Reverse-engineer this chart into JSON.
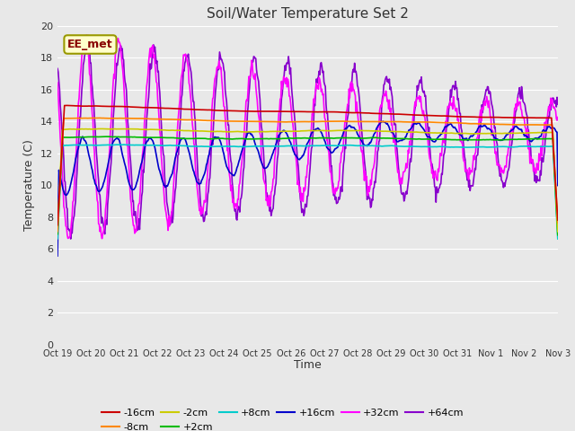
{
  "title": "Soil/Water Temperature Set 2",
  "xlabel": "Time",
  "ylabel": "Temperature (C)",
  "annotation": "EE_met",
  "ylim": [
    0,
    20
  ],
  "x_tick_labels": [
    "Oct 19",
    "Oct 20",
    "Oct 21",
    "Oct 22",
    "Oct 23",
    "Oct 24",
    "Oct 25",
    "Oct 26",
    "Oct 27",
    "Oct 28",
    "Oct 29",
    "Oct 30",
    "Oct 31",
    "Nov 1",
    "Nov 2",
    "Nov 3"
  ],
  "series": {
    "-16cm": {
      "color": "#cc0000",
      "lw": 1.2
    },
    "-8cm": {
      "color": "#ff8800",
      "lw": 1.2
    },
    "-2cm": {
      "color": "#cccc00",
      "lw": 1.2
    },
    "+2cm": {
      "color": "#00bb00",
      "lw": 1.2
    },
    "+8cm": {
      "color": "#00cccc",
      "lw": 1.2
    },
    "+16cm": {
      "color": "#0000cc",
      "lw": 1.2
    },
    "+32cm": {
      "color": "#ff00ff",
      "lw": 1.2
    },
    "+64cm": {
      "color": "#8800cc",
      "lw": 1.2
    }
  },
  "bg_color": "#e8e8e8",
  "plot_bg": "#e8e8e8",
  "grid_color": "#ffffff",
  "annotation_facecolor": "#ffffcc",
  "annotation_edgecolor": "#999900",
  "annotation_textcolor": "#880000"
}
